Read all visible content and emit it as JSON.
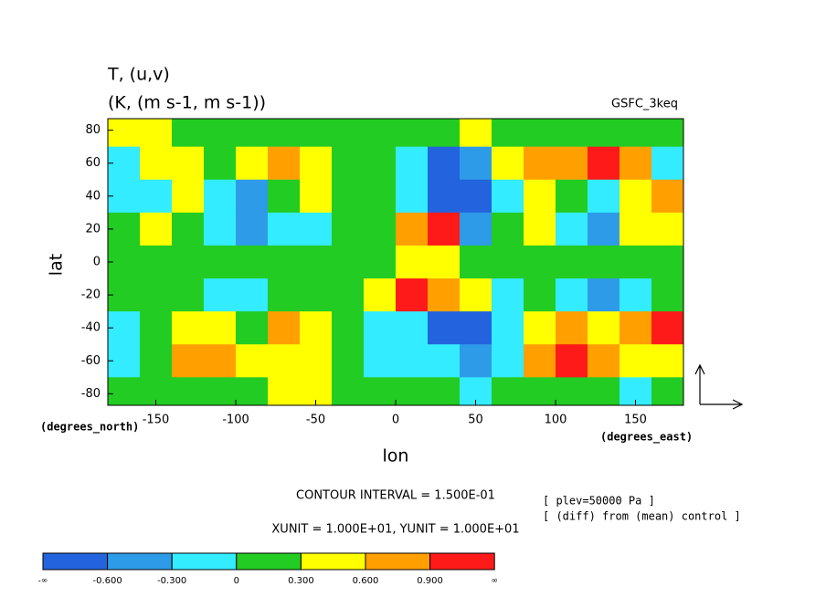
{
  "chart_data": {
    "type": "filled-contour",
    "title": "T, (u,v)",
    "subtitle": "(K, (m s-1, m s-1))",
    "dataset": "GSFC_3keq",
    "x_label": "lon",
    "y_label": "lat",
    "x_units": "(degrees_east)",
    "y_units": "(degrees_north)",
    "notes": [
      "CONTOUR INTERVAL = 1.500E-01",
      "XUNIT = 1.000E+01, YUNIT = 1.000E+01"
    ],
    "side_notes": [
      "[ plev=50000 Pa ]",
      "[ (diff) from (mean) control ]"
    ],
    "xlim": [
      -180,
      180
    ],
    "ylim": [
      -87,
      87
    ],
    "xticks": [
      -150,
      -100,
      -50,
      0,
      50,
      100,
      150
    ],
    "yticks": [
      -80,
      -60,
      -40,
      -20,
      0,
      20,
      40,
      60,
      80
    ],
    "x": [
      -170,
      -150,
      -130,
      -110,
      -90,
      -70,
      -50,
      -30,
      -10,
      10,
      30,
      50,
      70,
      90,
      110,
      130,
      150,
      170
    ],
    "y": [
      80,
      60,
      40,
      20,
      0,
      -20,
      -40,
      -60,
      -80
    ],
    "z": [
      [
        0.35,
        0.35,
        0.2,
        0.1,
        0.1,
        0.1,
        0.1,
        0.1,
        0.1,
        0.1,
        0.2,
        0.4,
        0.2,
        0.1,
        0.1,
        0.1,
        0.1,
        0.1
      ],
      [
        -0.1,
        0.4,
        0.4,
        0.2,
        0.4,
        0.7,
        0.4,
        0.15,
        0.1,
        -0.2,
        -0.7,
        -0.4,
        0.45,
        0.7,
        0.75,
        0.95,
        0.7,
        -0.1
      ],
      [
        -0.2,
        -0.2,
        0.4,
        -0.2,
        -0.35,
        0.2,
        0.4,
        0.1,
        0.1,
        -0.2,
        -0.7,
        -0.7,
        -0.2,
        0.4,
        0.15,
        -0.2,
        0.4,
        0.7
      ],
      [
        0.1,
        0.4,
        0.1,
        -0.2,
        -0.4,
        -0.2,
        -0.1,
        0.1,
        0.1,
        0.7,
        0.95,
        -0.35,
        0.1,
        0.4,
        -0.2,
        -0.4,
        0.4,
        0.4
      ],
      [
        0.1,
        0.1,
        0.1,
        0.1,
        0.1,
        0.1,
        0.1,
        0.1,
        0.2,
        0.4,
        0.35,
        0.1,
        0.15,
        0.1,
        0.1,
        0.1,
        0.1,
        0.1
      ],
      [
        0.1,
        0.1,
        0.1,
        -0.1,
        -0.1,
        0.1,
        0.1,
        0.15,
        0.4,
        0.95,
        0.7,
        0.4,
        -0.2,
        0.2,
        -0.2,
        -0.4,
        -0.1,
        0.1
      ],
      [
        -0.2,
        0.1,
        0.4,
        0.4,
        0.2,
        0.7,
        0.4,
        0.1,
        -0.2,
        -0.2,
        -0.7,
        -0.7,
        -0.1,
        0.4,
        0.7,
        0.45,
        0.7,
        0.95
      ],
      [
        -0.1,
        0.1,
        0.7,
        0.7,
        0.4,
        0.4,
        0.4,
        0.1,
        -0.2,
        -0.2,
        -0.2,
        -0.4,
        -0.1,
        0.7,
        0.95,
        0.7,
        0.4,
        0.4
      ],
      [
        0.1,
        0.1,
        0.1,
        0.1,
        0.2,
        0.35,
        0.35,
        0.1,
        0.1,
        0.1,
        0.1,
        -0.1,
        0.1,
        0.1,
        0.1,
        0.1,
        -0.1,
        0.1
      ]
    ],
    "levels": [
      {
        "value": -0.6,
        "label": "-0.600"
      },
      {
        "value": -0.3,
        "label": "-0.300"
      },
      0.0,
      {
        "value": 0.3,
        "label": "0.300"
      },
      {
        "value": 0.6,
        "label": "0.600"
      },
      {
        "value": 0.9,
        "label": "0.900"
      }
    ],
    "level_low_label": "-∞",
    "level_high_label": "∞",
    "colors": [
      "#2364de",
      "#2e9be8",
      "#33ecff",
      "#22cc22",
      "#ffff00",
      "#ffa000",
      "#ff1a1a"
    ]
  }
}
